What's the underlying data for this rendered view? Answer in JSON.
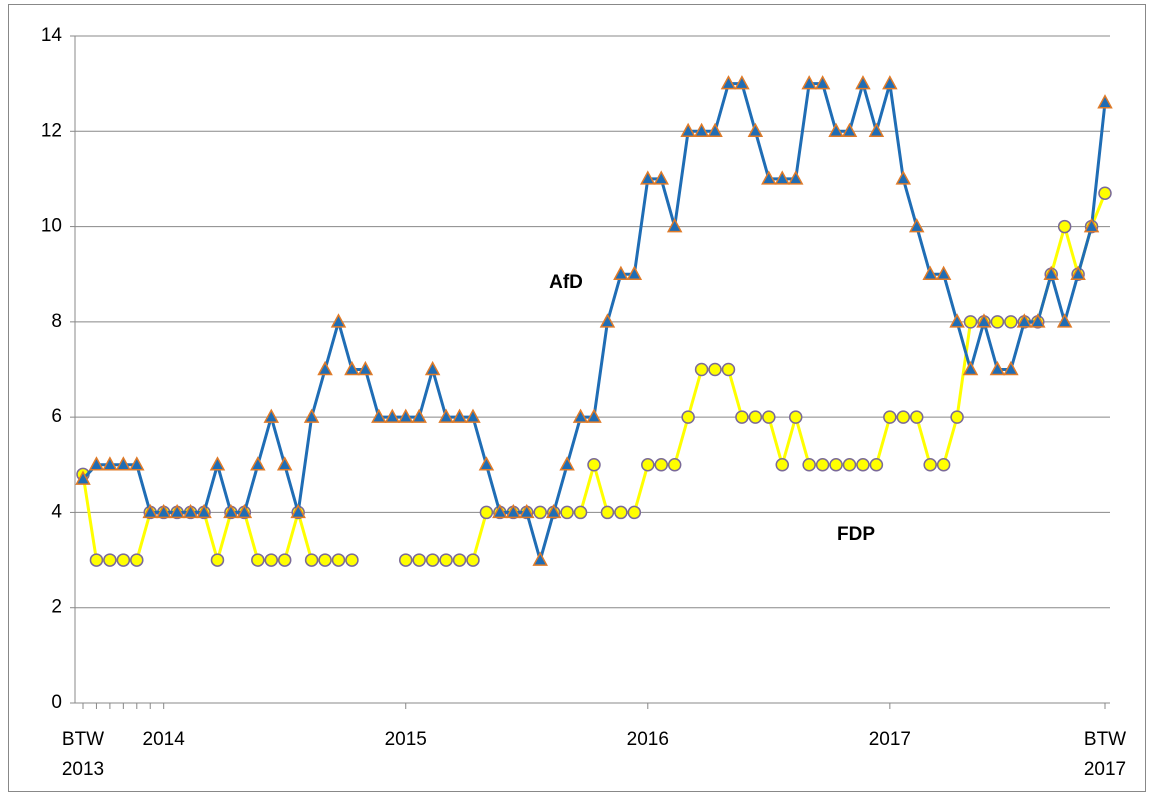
{
  "chart_data": {
    "type": "line",
    "categories": [
      "BTW 2013",
      null,
      null,
      null,
      null,
      null,
      "2014",
      null,
      null,
      null,
      null,
      null,
      null,
      null,
      null,
      null,
      null,
      null,
      null,
      null,
      null,
      null,
      null,
      null,
      "2015",
      null,
      null,
      null,
      null,
      null,
      null,
      null,
      null,
      null,
      null,
      null,
      null,
      null,
      null,
      null,
      null,
      null,
      "2016",
      null,
      null,
      null,
      null,
      null,
      null,
      null,
      null,
      null,
      null,
      null,
      null,
      null,
      null,
      null,
      null,
      null,
      "2017",
      null,
      null,
      null,
      null,
      null,
      null,
      null,
      null,
      null,
      null,
      null,
      null,
      null,
      null,
      null,
      "BTW 2017"
    ],
    "series": [
      {
        "name": "AfD",
        "color": "#1f6db5",
        "marker": "triangle",
        "marker_edge": "#e07b28",
        "values": [
          4.7,
          5,
          5,
          5,
          5,
          4,
          4,
          4,
          4,
          4,
          5,
          4,
          4,
          5,
          6,
          5,
          4,
          6,
          7,
          8,
          7,
          7,
          6,
          6,
          6,
          6,
          7,
          6,
          6,
          6,
          5,
          4,
          4,
          4,
          3,
          4,
          5,
          6,
          6,
          8,
          9,
          9,
          11,
          11,
          10,
          12,
          12,
          12,
          13,
          13,
          12,
          11,
          11,
          11,
          13,
          13,
          12,
          12,
          13,
          12,
          13,
          11,
          10,
          9,
          9,
          8,
          7,
          8,
          7,
          7,
          8,
          8,
          9,
          8,
          9,
          10,
          12.6
        ]
      },
      {
        "name": "FDP",
        "color": "#ffff00",
        "marker": "circle",
        "marker_edge": "#7a6a98",
        "values": [
          4.8,
          3,
          3,
          3,
          3,
          4,
          4,
          4,
          4,
          4,
          3,
          4,
          4,
          3,
          3,
          3,
          4,
          3,
          3,
          3,
          3,
          null,
          null,
          null,
          3,
          3,
          3,
          3,
          3,
          3,
          4,
          4,
          4,
          4,
          4,
          4,
          4,
          4,
          5,
          4,
          4,
          4,
          5,
          5,
          5,
          6,
          7,
          7,
          7,
          6,
          6,
          6,
          5,
          6,
          5,
          5,
          5,
          5,
          5,
          5,
          6,
          6,
          6,
          5,
          5,
          6,
          8,
          8,
          8,
          8,
          8,
          8,
          9,
          10,
          9,
          10,
          10.7
        ]
      }
    ],
    "ylim": [
      0,
      14
    ],
    "yticks": [
      0,
      2,
      4,
      6,
      8,
      10,
      12,
      14
    ],
    "grid": true
  }
}
